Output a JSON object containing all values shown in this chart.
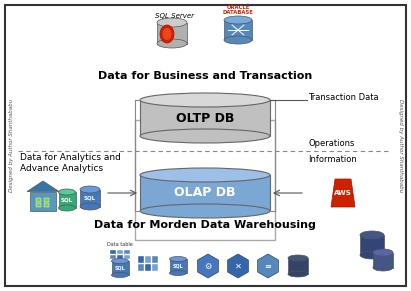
{
  "bg_color": "#ffffff",
  "title_business": "Data for Business and Transaction",
  "title_analytics": "Data for Analytics and\nAdvance Analytics",
  "title_modern": "Data for Morden Data Warehousing",
  "label_oltp": "OLTP DB",
  "label_olap": "OLAP DB",
  "label_transaction": "Transaction Data",
  "label_operations": "Operations",
  "label_information": "Information",
  "label_sqlserver": "SQL Server",
  "label_datatable": "Data table",
  "watermark": "Designed by Author Shanthababu",
  "oltp_body": "#c0c0c0",
  "oltp_top": "#d8d8d8",
  "olap_body": "#7BA7D4",
  "olap_top": "#9dbfe8",
  "dashed_line_color": "#888888"
}
